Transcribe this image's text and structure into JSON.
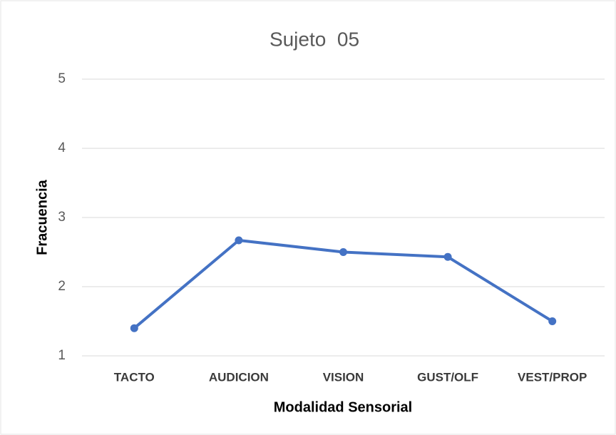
{
  "chart_data": {
    "type": "line",
    "title": "Sujeto  05",
    "x_label": "Modalidad Sensorial",
    "y_label": "Fracuencia",
    "categories": [
      "TACTO",
      "AUDICION",
      "VISION",
      "GUST/OLF",
      "VEST/PROP"
    ],
    "series": [
      {
        "name": "Sujeto 05",
        "color": "#4472c4",
        "values": [
          1.4,
          2.67,
          2.5,
          2.43,
          1.5
        ]
      }
    ],
    "ylim": [
      1,
      5
    ],
    "yticks": [
      1,
      2,
      3,
      4,
      5
    ],
    "grid": true
  }
}
